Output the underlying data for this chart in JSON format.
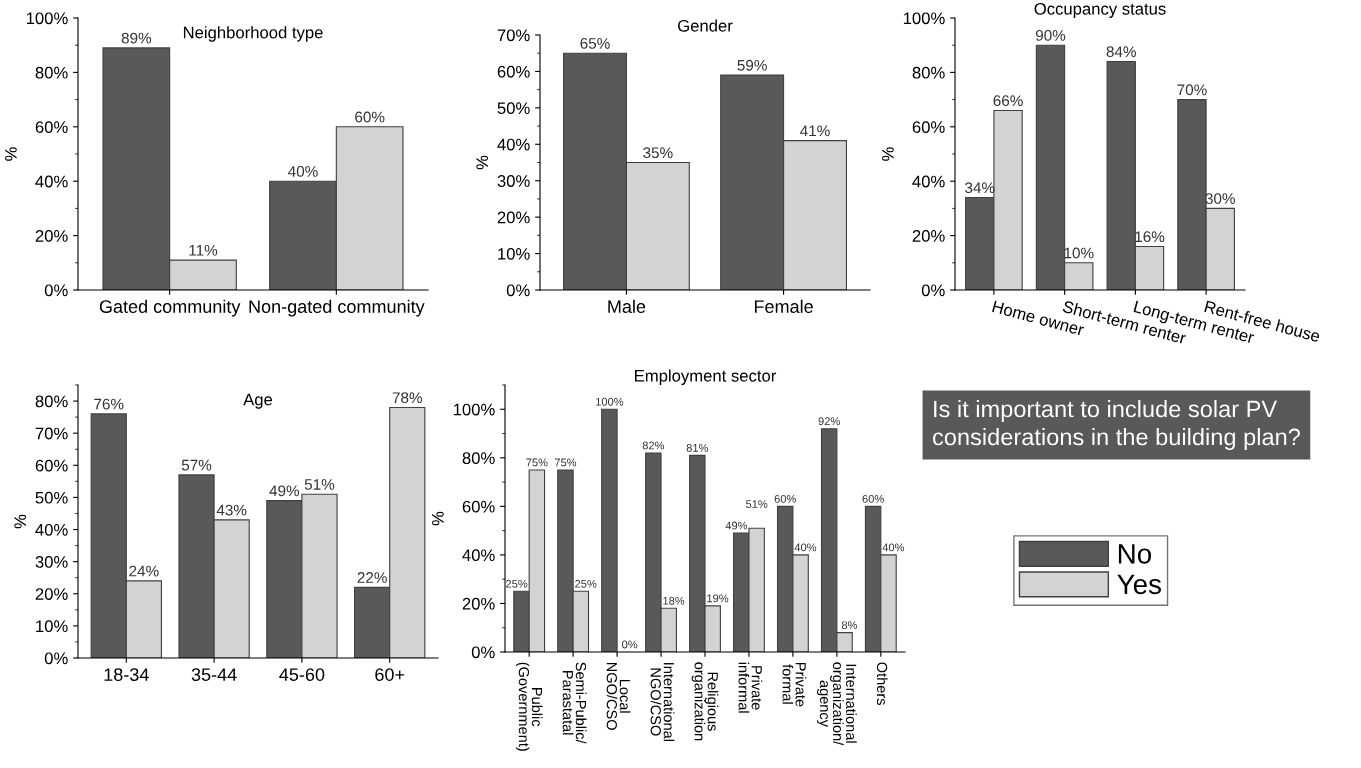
{
  "chart_data": [
    {
      "type": "bar",
      "title": "Neighborhood type",
      "ylabel": "%",
      "categories": [
        "Gated community",
        "Non-gated community"
      ],
      "ylim": [
        0,
        100
      ],
      "yticks": [
        {
          "value": 0,
          "label": "0%"
        },
        {
          "value": 20,
          "label": "20%"
        },
        {
          "value": 40,
          "label": "40%"
        },
        {
          "value": 60,
          "label": "60%"
        },
        {
          "value": 80,
          "label": "80%"
        },
        {
          "value": 100,
          "label": "100%"
        }
      ],
      "grid": false,
      "legend": false,
      "series": [
        {
          "color": "#595959",
          "values": [
            89,
            40
          ],
          "value_labels": [
            "89%",
            "40%"
          ]
        },
        {
          "color": "#d3d3d3",
          "values": [
            11,
            60
          ],
          "value_labels": [
            "11%",
            "60%"
          ]
        }
      ]
    },
    {
      "type": "bar",
      "title": "Gender",
      "ylabel": "%",
      "categories": [
        "Male",
        "Female"
      ],
      "ylim": [
        0,
        70
      ],
      "yticks": [
        {
          "value": 0,
          "label": "0%"
        },
        {
          "value": 10,
          "label": "10%"
        },
        {
          "value": 20,
          "label": "20%"
        },
        {
          "value": 30,
          "label": "30%"
        },
        {
          "value": 40,
          "label": "40%"
        },
        {
          "value": 50,
          "label": "50%"
        },
        {
          "value": 60,
          "label": "60%"
        },
        {
          "value": 70,
          "label": "70%"
        }
      ],
      "grid": false,
      "legend": false,
      "series": [
        {
          "color": "#595959",
          "values": [
            65,
            59
          ],
          "value_labels": [
            "65%",
            "59%"
          ]
        },
        {
          "color": "#d3d3d3",
          "values": [
            35,
            41
          ],
          "value_labels": [
            "35%",
            "41%"
          ]
        }
      ]
    },
    {
      "type": "bar",
      "title": "Occupancy status",
      "ylabel": "%",
      "categories": [
        "Home owner",
        "Short-term renter",
        "Long-term renter",
        "Rent-free house"
      ],
      "ylim": [
        0,
        100
      ],
      "yticks": [
        {
          "value": 0,
          "label": "0%"
        },
        {
          "value": 20,
          "label": "20%"
        },
        {
          "value": 40,
          "label": "40%"
        },
        {
          "value": 60,
          "label": "60%"
        },
        {
          "value": 80,
          "label": "80%"
        },
        {
          "value": 100,
          "label": "100%"
        }
      ],
      "grid": false,
      "legend": false,
      "series": [
        {
          "color": "#595959",
          "values": [
            34,
            90,
            84,
            70
          ],
          "value_labels": [
            "34%",
            "90%",
            "84%",
            "70%"
          ]
        },
        {
          "color": "#d3d3d3",
          "values": [
            66,
            10,
            16,
            30
          ],
          "value_labels": [
            "66%",
            "10%",
            "16%",
            "30%"
          ]
        }
      ]
    },
    {
      "type": "bar",
      "title": "Age",
      "ylabel": "%",
      "categories": [
        "18-34",
        "35-44",
        "45-60",
        "60+"
      ],
      "ylim": [
        0,
        85
      ],
      "yticks": [
        {
          "value": 0,
          "label": "0%"
        },
        {
          "value": 10,
          "label": "10%"
        },
        {
          "value": 20,
          "label": "20%"
        },
        {
          "value": 30,
          "label": "30%"
        },
        {
          "value": 40,
          "label": "40%"
        },
        {
          "value": 50,
          "label": "50%"
        },
        {
          "value": 60,
          "label": "60%"
        },
        {
          "value": 70,
          "label": "70%"
        },
        {
          "value": 80,
          "label": "80%"
        }
      ],
      "grid": false,
      "legend": false,
      "series": [
        {
          "color": "#595959",
          "values": [
            76,
            57,
            49,
            22
          ],
          "value_labels": [
            "76%",
            "57%",
            "49%",
            "22%"
          ]
        },
        {
          "color": "#d3d3d3",
          "values": [
            24,
            43,
            51,
            78
          ],
          "value_labels": [
            "24%",
            "43%",
            "51%",
            "78%"
          ]
        }
      ]
    },
    {
      "type": "bar",
      "title": "Employment sector",
      "ylabel": "%",
      "categories": [
        "Public\n(Government)",
        "Semi-Public/\nParastatal",
        "Local\nNGO/CSO",
        "International\nNGO/CSO",
        "Religious\norganization",
        "Private\ninformal",
        "Private\nformal",
        "International\norganization/\nagency",
        "Others"
      ],
      "ylim": [
        0,
        110
      ],
      "yticks": [
        {
          "value": 0,
          "label": "0%"
        },
        {
          "value": 20,
          "label": "20%"
        },
        {
          "value": 40,
          "label": "40%"
        },
        {
          "value": 60,
          "label": "60%"
        },
        {
          "value": 80,
          "label": "80%"
        },
        {
          "value": 100,
          "label": "100%"
        }
      ],
      "grid": false,
      "legend": "right",
      "legend_title": "Is it important to include solar PV considerations in the building plan?",
      "series": [
        {
          "name": "No",
          "color": "#595959",
          "values": [
            25,
            75,
            100,
            82,
            81,
            49,
            60,
            92,
            60
          ],
          "value_labels": [
            "25%",
            "75%",
            "100%",
            "82%",
            "81%",
            "49%",
            "60%",
            "92%",
            "60%"
          ]
        },
        {
          "name": "Yes",
          "color": "#d3d3d3",
          "values": [
            75,
            25,
            0,
            18,
            19,
            51,
            40,
            8,
            40
          ],
          "value_labels": [
            "75%",
            "25%",
            "0%",
            "18%",
            "19%",
            "51%",
            "40%",
            "8%",
            "40%"
          ]
        }
      ]
    }
  ]
}
